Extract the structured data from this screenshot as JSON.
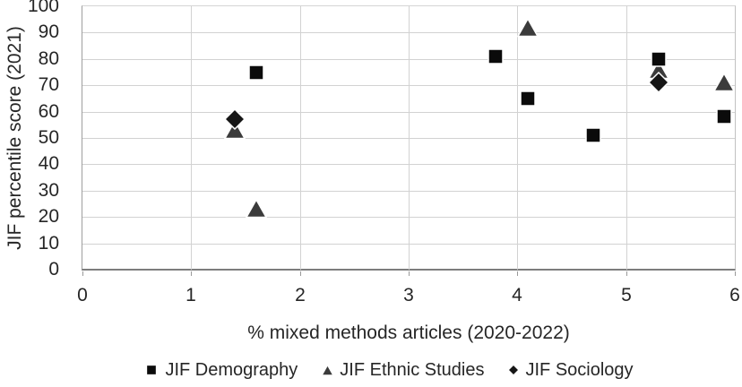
{
  "chart_data": {
    "type": "scatter",
    "title": "",
    "xlabel": "% mixed methods articles (2020-2022)",
    "ylabel": "JIF percentile score (2021)",
    "xlim": [
      0,
      6
    ],
    "ylim": [
      0,
      100
    ],
    "x_ticks": [
      0,
      1,
      2,
      3,
      4,
      5,
      6
    ],
    "y_ticks": [
      0,
      10,
      20,
      30,
      40,
      50,
      60,
      70,
      80,
      90,
      100
    ],
    "grid": true,
    "legend_position": "bottom",
    "series": [
      {
        "name": "JIF Demography",
        "marker": "square",
        "color": "#0b0b0b",
        "points": [
          [
            1.6,
            75
          ],
          [
            3.8,
            81
          ],
          [
            4.1,
            65
          ],
          [
            4.7,
            51
          ],
          [
            5.3,
            80
          ],
          [
            5.9,
            58
          ]
        ]
      },
      {
        "name": "JIF Ethnic Studies",
        "marker": "triangle",
        "color": "#3b3b3b",
        "points": [
          [
            1.4,
            53
          ],
          [
            1.6,
            23
          ],
          [
            4.1,
            92
          ],
          [
            5.3,
            76
          ],
          [
            5.9,
            71
          ]
        ]
      },
      {
        "name": "JIF Sociology",
        "marker": "diamond",
        "color": "#161616",
        "points": [
          [
            1.4,
            57
          ],
          [
            5.3,
            71
          ]
        ]
      }
    ],
    "colors": {
      "gridline": "#d2d2d2",
      "axis_line": "#7d7d7d",
      "plot_border": "#9e9e9e",
      "tick_mark": "#9a9a9a",
      "text": "#262626",
      "marker_outline": "#ffffff"
    }
  }
}
